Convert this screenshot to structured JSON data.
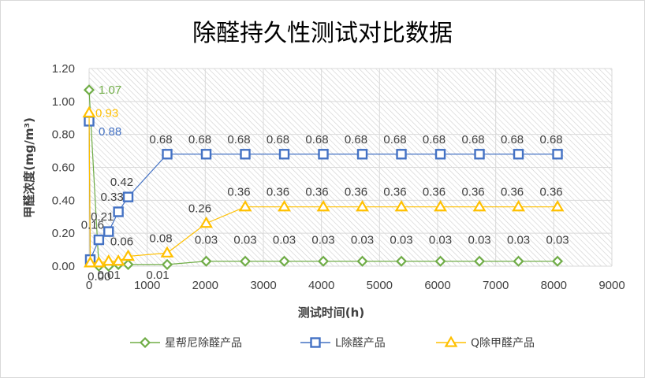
{
  "chart_data": {
    "type": "scatter",
    "title": "除醛持久性测试对比数据",
    "xlabel": "测试时间(h)",
    "ylabel": "甲醛浓度(mg/m³)",
    "xlim": [
      0,
      9000
    ],
    "ylim": [
      0,
      1.2
    ],
    "xticks": [
      "0",
      "1000",
      "2000",
      "3000",
      "4000",
      "5000",
      "6000",
      "7000",
      "8000",
      "9000"
    ],
    "yticks": [
      "0.00",
      "0.20",
      "0.40",
      "0.60",
      "0.80",
      "1.00",
      "1.20"
    ],
    "grid": true,
    "legend_position": "bottom",
    "series": [
      {
        "name": "星帮尼除醛产品",
        "color": "#70ad47",
        "marker": "diamond",
        "x": [
          0,
          168,
          336,
          504,
          672,
          1344,
          2016,
          2688,
          3360,
          4032,
          4704,
          5376,
          6048,
          6720,
          7392,
          8064
        ],
        "y": [
          1.07,
          0.0,
          0.0,
          0.01,
          0.01,
          0.01,
          0.03,
          0.03,
          0.03,
          0.03,
          0.03,
          0.03,
          0.03,
          0.03,
          0.03,
          0.03
        ],
        "labels": [
          "1.07",
          "",
          "0.00",
          "0.01",
          "",
          "0.01",
          "0.03",
          "0.03",
          "0.03",
          "0.03",
          "0.03",
          "0.03",
          "0.03",
          "0.03",
          "0.03",
          "0.03"
        ]
      },
      {
        "name": "L除醛产品",
        "color": "#4472c4",
        "marker": "square",
        "x": [
          0,
          20,
          168,
          336,
          504,
          672,
          1344,
          2016,
          2688,
          3360,
          4032,
          4704,
          5376,
          6048,
          6720,
          7392,
          8064
        ],
        "y": [
          0.88,
          0.04,
          0.16,
          0.21,
          0.33,
          0.42,
          0.68,
          0.68,
          0.68,
          0.68,
          0.68,
          0.68,
          0.68,
          0.68,
          0.68,
          0.68,
          0.68
        ],
        "labels": [
          "0.88",
          "",
          "0.16",
          "0.21",
          "0.33",
          "0.42",
          "0.68",
          "0.68",
          "0.68",
          "0.68",
          "0.68",
          "0.68",
          "0.68",
          "0.68",
          "0.68",
          "0.68",
          "0.68"
        ]
      },
      {
        "name": "Q除甲醛产品",
        "color": "#ffc000",
        "marker": "triangle",
        "x": [
          0,
          20,
          168,
          336,
          504,
          672,
          1344,
          2016,
          2688,
          3360,
          4032,
          4704,
          5376,
          6048,
          6720,
          7392,
          8064
        ],
        "y": [
          0.93,
          0.02,
          0.02,
          0.03,
          0.03,
          0.06,
          0.08,
          0.26,
          0.36,
          0.36,
          0.36,
          0.36,
          0.36,
          0.36,
          0.36,
          0.36,
          0.36
        ],
        "labels": [
          "0.93",
          "",
          "",
          "",
          "",
          "0.06",
          "0.08",
          "0.26",
          "0.36",
          "0.36",
          "0.36",
          "0.36",
          "0.36",
          "0.36",
          "0.36",
          "0.36",
          "0.36"
        ]
      }
    ]
  }
}
